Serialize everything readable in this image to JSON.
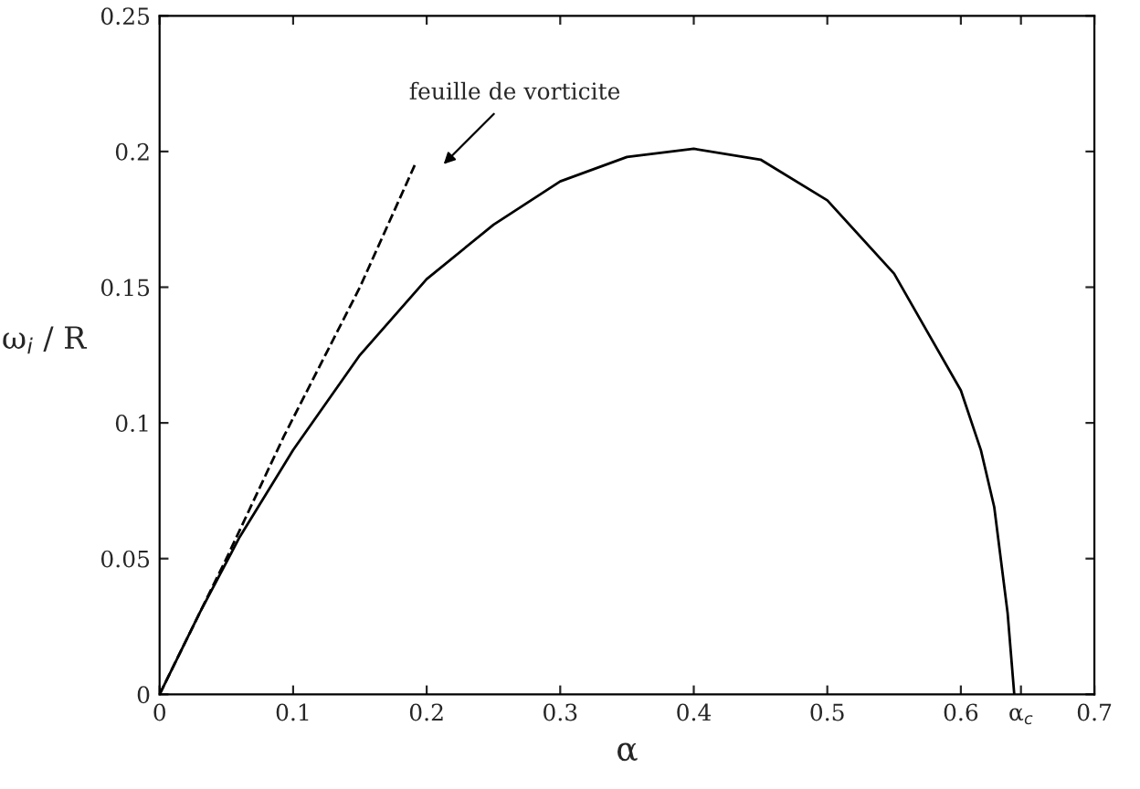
{
  "chart_data": {
    "type": "line",
    "xlabel": "α",
    "ylabel": "ω$_{i}$ / R",
    "series": [
      {
        "color": "#000000",
        "line_style": "solid",
        "x": [
          0,
          0.03,
          0.06,
          0.1,
          0.15,
          0.2,
          0.25,
          0.3,
          0.35,
          0.4,
          0.45,
          0.5,
          0.55,
          0.6,
          0.615,
          0.625,
          0.635,
          0.64
        ],
        "values": [
          0,
          0.03,
          0.058,
          0.09,
          0.125,
          0.153,
          0.173,
          0.189,
          0.198,
          0.201,
          0.197,
          0.182,
          0.155,
          0.112,
          0.09,
          0.069,
          0.03,
          0
        ]
      },
      {
        "color": "#000000",
        "line_style": "dashed",
        "x": [
          0,
          0.05,
          0.093,
          0.15,
          0.192
        ],
        "values": [
          0,
          0.05,
          0.095,
          0.15,
          0.196
        ]
      }
    ],
    "annotations": [
      "feuille de vorticite"
    ],
    "xlim": [
      0,
      0.7
    ],
    "ylim": [
      0,
      0.25
    ],
    "xticks": [
      0,
      0.1,
      0.2,
      0.3,
      0.4,
      0.5,
      0.6,
      {
        "value": 0.645,
        "label": "α$_{c}$"
      },
      0.7
    ],
    "yticks": [
      0,
      0.05,
      0.1,
      0.15,
      0.2,
      0.25
    ],
    "grid": false,
    "legend": false
  }
}
